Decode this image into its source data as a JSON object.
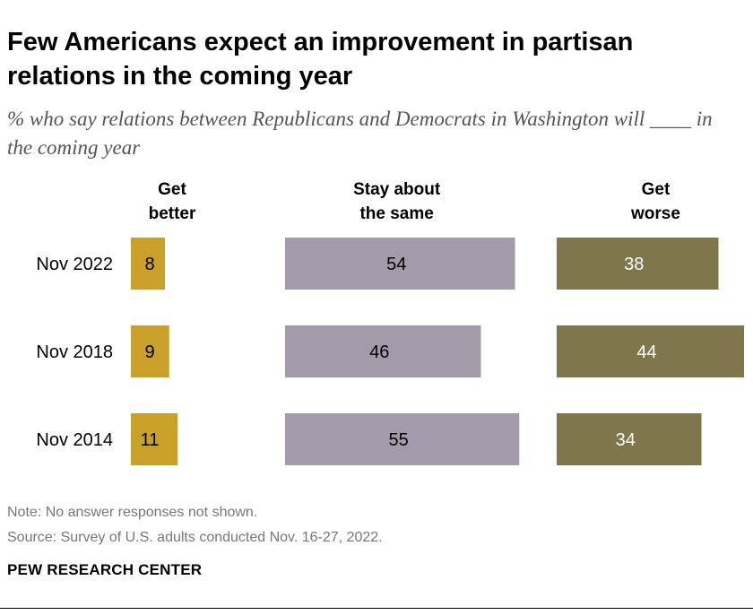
{
  "title": "Few Americans expect an improvement in partisan relations in the coming year",
  "subtitle": "% who say relations between Republicans and Democrats in Washington will ____ in the coming year",
  "chart_data": {
    "type": "bar",
    "subtype": "horizontal-separate-columns",
    "categories": [
      "Nov 2022",
      "Nov 2018",
      "Nov 2014"
    ],
    "series": [
      {
        "name": "Get better",
        "values": [
          8,
          9,
          11
        ],
        "color": "#C9A02A",
        "label_color": "#000000"
      },
      {
        "name": "Stay about the same",
        "values": [
          54,
          46,
          55
        ],
        "color": "#A39BAA",
        "label_color": "#000000"
      },
      {
        "name": "Get worse",
        "values": [
          38,
          44,
          34
        ],
        "color": "#80764B",
        "label_color": "#ffffff"
      }
    ],
    "unit": "%",
    "xlim": [
      0,
      100
    ],
    "grid": false,
    "legend": "column headers above each bar group"
  },
  "footer": {
    "note": "Note: No answer responses not shown.",
    "source": "Source: Survey of U.S. adults conducted Nov. 16-27, 2022.",
    "brand": "PEW RESEARCH CENTER"
  }
}
